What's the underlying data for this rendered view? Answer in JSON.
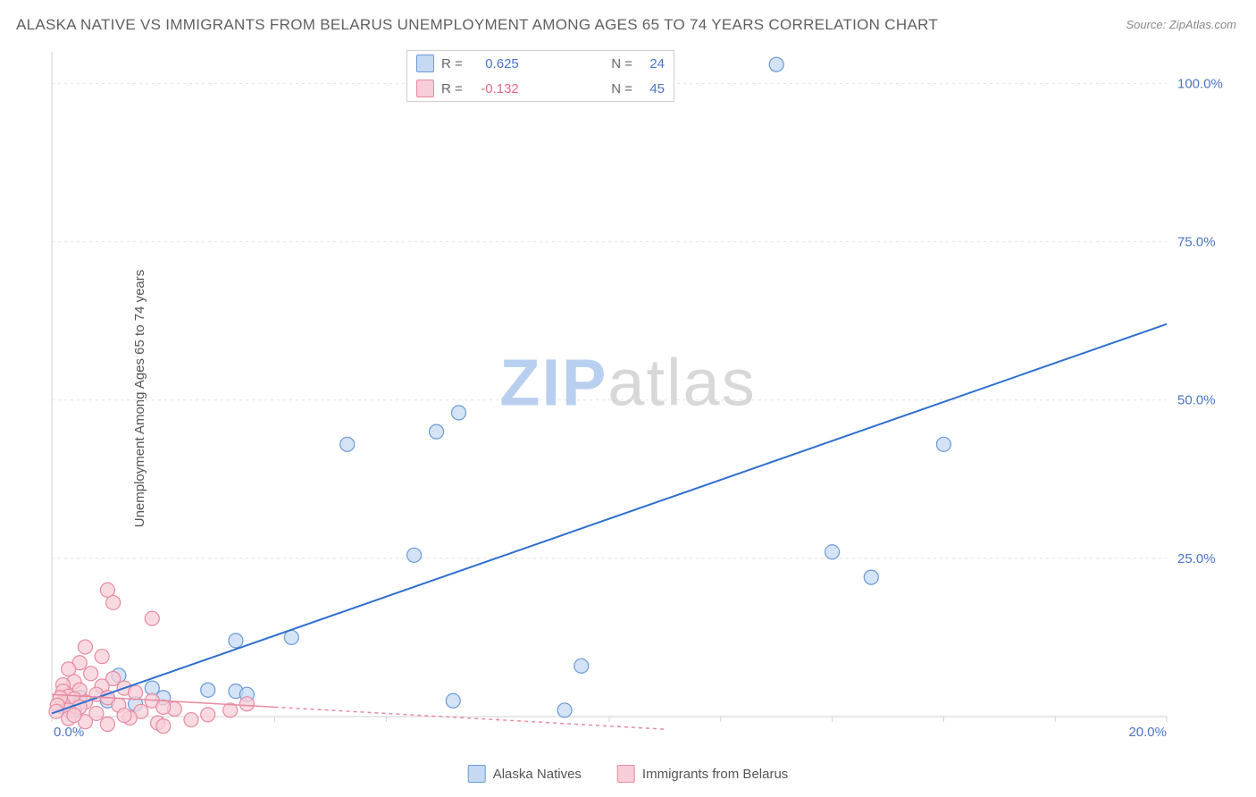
{
  "title": "ALASKA NATIVE VS IMMIGRANTS FROM BELARUS UNEMPLOYMENT AMONG AGES 65 TO 74 YEARS CORRELATION CHART",
  "source": "Source: ZipAtlas.com",
  "ylabel": "Unemployment Among Ages 65 to 74 years",
  "watermark": {
    "part1": "ZIP",
    "part2": "atlas"
  },
  "chart": {
    "type": "scatter",
    "background_color": "#ffffff",
    "grid_color": "#e4e4e4",
    "border_color": "#d0d0d0",
    "xlim": [
      0,
      20
    ],
    "ylim": [
      0,
      105
    ],
    "x_ticks": [
      0,
      2,
      4,
      6,
      8,
      10,
      12,
      14,
      16,
      18,
      20
    ],
    "x_tick_labels": {
      "0": "0.0%",
      "20": "20.0%"
    },
    "x_tick_color": "#4a74c9",
    "y_ticks": [
      25,
      50,
      75,
      100
    ],
    "y_tick_labels": {
      "25": "25.0%",
      "50": "50.0%",
      "75": "75.0%",
      "100": "100.0%"
    },
    "y_tick_color": "#4a74c9",
    "series": [
      {
        "name": "Alaska Natives",
        "marker_fill": "#c5d9f3",
        "marker_stroke": "#6a9ad8",
        "marker_opacity": 0.75,
        "marker_radius": 8,
        "line_color": "#2f6fd0",
        "line_width": 2,
        "line_dash": "none",
        "trend_start": [
          0,
          0.5
        ],
        "trend_end": [
          20,
          62
        ],
        "correlation": {
          "r": "0.625",
          "n": "24",
          "r_color": "#4a74c9"
        },
        "points": [
          [
            13.0,
            103.0
          ],
          [
            16.0,
            43.0
          ],
          [
            14.0,
            26.0
          ],
          [
            14.7,
            22.0
          ],
          [
            9.5,
            8.0
          ],
          [
            9.2,
            1.0
          ],
          [
            7.2,
            2.5
          ],
          [
            6.9,
            45.0
          ],
          [
            7.3,
            48.0
          ],
          [
            5.3,
            43.0
          ],
          [
            6.5,
            25.5
          ],
          [
            4.3,
            12.5
          ],
          [
            3.3,
            12.0
          ],
          [
            3.3,
            4.0
          ],
          [
            3.5,
            3.5
          ],
          [
            2.8,
            4.2
          ],
          [
            2.0,
            3.0
          ],
          [
            1.5,
            2.0
          ],
          [
            1.8,
            4.5
          ],
          [
            1.0,
            2.5
          ],
          [
            1.2,
            6.5
          ],
          [
            0.5,
            3.0
          ],
          [
            0.4,
            1.0
          ],
          [
            0.2,
            1.5
          ]
        ]
      },
      {
        "name": "Immigrants from Belarus",
        "marker_fill": "#f7cdd7",
        "marker_stroke": "#e88aa0",
        "marker_opacity": 0.75,
        "marker_radius": 8,
        "line_color": "#e88aa0",
        "line_width": 1.5,
        "line_dash": "4 4",
        "trend_start": [
          0,
          3.5
        ],
        "trend_end": [
          11,
          -2.0
        ],
        "correlation": {
          "r": "-0.132",
          "n": "45",
          "r_color": "#e26a88"
        },
        "points": [
          [
            1.0,
            20.0
          ],
          [
            1.1,
            18.0
          ],
          [
            1.8,
            15.5
          ],
          [
            0.6,
            11.0
          ],
          [
            0.9,
            9.5
          ],
          [
            0.5,
            8.5
          ],
          [
            0.3,
            7.5
          ],
          [
            0.7,
            6.8
          ],
          [
            1.1,
            6.0
          ],
          [
            0.4,
            5.5
          ],
          [
            0.2,
            5.0
          ],
          [
            0.9,
            4.8
          ],
          [
            1.3,
            4.5
          ],
          [
            0.5,
            4.2
          ],
          [
            0.2,
            4.0
          ],
          [
            1.5,
            3.8
          ],
          [
            0.8,
            3.5
          ],
          [
            0.3,
            3.2
          ],
          [
            1.0,
            3.0
          ],
          [
            0.4,
            2.8
          ],
          [
            1.8,
            2.5
          ],
          [
            0.6,
            2.3
          ],
          [
            0.2,
            2.0
          ],
          [
            1.2,
            1.8
          ],
          [
            0.5,
            1.5
          ],
          [
            2.2,
            1.2
          ],
          [
            0.3,
            1.0
          ],
          [
            1.6,
            0.8
          ],
          [
            0.8,
            0.5
          ],
          [
            2.8,
            0.3
          ],
          [
            1.4,
            -0.2
          ],
          [
            2.5,
            -0.5
          ],
          [
            3.2,
            1.0
          ],
          [
            3.5,
            2.0
          ],
          [
            1.9,
            -1.0
          ],
          [
            2.0,
            1.5
          ],
          [
            0.15,
            3.0
          ],
          [
            0.1,
            1.8
          ],
          [
            0.08,
            0.8
          ],
          [
            0.3,
            -0.3
          ],
          [
            1.0,
            -1.2
          ],
          [
            0.6,
            -0.8
          ],
          [
            0.4,
            0.2
          ],
          [
            2.0,
            -1.5
          ],
          [
            1.3,
            0.2
          ]
        ]
      }
    ]
  },
  "legend": {
    "items": [
      {
        "label": "Alaska Natives",
        "fill": "#c5d9f3",
        "stroke": "#6a9ad8"
      },
      {
        "label": "Immigrants from Belarus",
        "fill": "#f7cdd7",
        "stroke": "#e88aa0"
      }
    ]
  }
}
